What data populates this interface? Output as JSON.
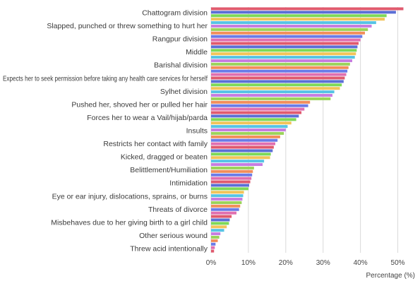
{
  "chart_data": {
    "type": "bar",
    "orientation": "horizontal",
    "xlabel": "Percentage (%)",
    "ylabel": "",
    "xlim": [
      0,
      55
    ],
    "xticks": [
      0,
      10,
      20,
      30,
      40,
      50
    ],
    "xtick_labels": [
      "0%",
      "10%",
      "20%",
      "30%",
      "40%",
      "50%"
    ],
    "grid": true,
    "legend": "none",
    "labeled_categories": [
      "Chattogram division",
      "Slapped, punched or threw something to hurt her",
      "Rangpur division",
      "Middle",
      "Barishal division",
      "Expects her to seek permission before taking any health care services for herself",
      "Sylhet division",
      "Pushed her, shoved her or pulled her hair",
      "Forces her to wear a Vail/hijab/parda",
      "Insults",
      "Restricts her contact with family",
      "Kicked, dragged or beaten",
      "Belittlement/Humiliation",
      "Intimidation",
      "Eye or ear injury, dislocations, sprains, or burns",
      "Threats of divorce",
      "Misbehaves due to her giving birth to a girl child",
      "Other serious wound",
      "Threw acid intentionally"
    ],
    "values": [
      51.5,
      49.5,
      47,
      46.5,
      44.2,
      43,
      42,
      41.2,
      40.5,
      40,
      39.5,
      39.2,
      39,
      38.8,
      38.5,
      37.8,
      37.2,
      36.8,
      36.5,
      36.2,
      35.8,
      35.5,
      35,
      34.5,
      33,
      32.5,
      32,
      26.5,
      26,
      25,
      24.2,
      23.5,
      22.8,
      21.5,
      20.5,
      20,
      19.5,
      18.5,
      17.8,
      17.2,
      16.8,
      16.5,
      16,
      15.8,
      14.2,
      13.8,
      11.5,
      11.2,
      11,
      10.8,
      10.5,
      10.2,
      10,
      8.8,
      8.6,
      8.4,
      8.2,
      7.8,
      7.5,
      6.8,
      5.5,
      5,
      4.8,
      4.2,
      3.5,
      2.5,
      2.2,
      1.8,
      1.2,
      1,
      0.8
    ]
  },
  "colors": {
    "bar_palette": [
      "#e05a6e",
      "#5b6fd6",
      "#7ed957",
      "#f2c45a",
      "#57c4e5",
      "#c77de0",
      "#9bd35a",
      "#f28e5a",
      "#6a7be8",
      "#e06fb0"
    ],
    "grid": "#d9d9d9",
    "text": "#3a3a3a"
  }
}
